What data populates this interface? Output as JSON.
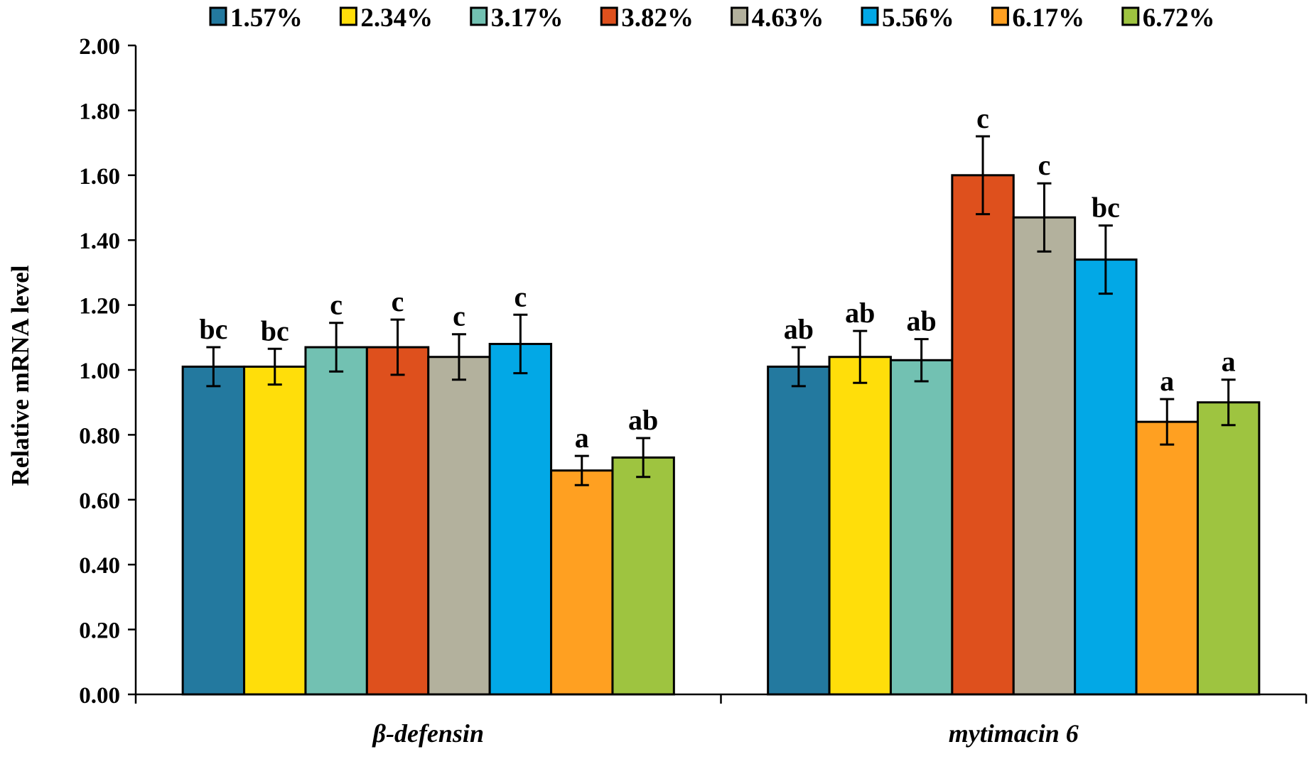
{
  "chart_data": {
    "type": "bar",
    "title": "",
    "xlabel": "",
    "ylabel": "Relative mRNA level",
    "ylim": [
      0,
      2.0
    ],
    "yticks": [
      "0.00",
      "0.20",
      "0.40",
      "0.60",
      "0.80",
      "1.00",
      "1.20",
      "1.40",
      "1.60",
      "1.80",
      "2.00"
    ],
    "grid": false,
    "legend_position": "top",
    "categories": [
      "β-defensin",
      "mytimacin 6"
    ],
    "series": [
      {
        "name": "1.57%",
        "color": "#23799f",
        "values": [
          1.01,
          1.01
        ],
        "errors": [
          0.06,
          0.06
        ],
        "labels": [
          "bc",
          "ab"
        ]
      },
      {
        "name": "2.34%",
        "color": "#ffde0a",
        "values": [
          1.01,
          1.04
        ],
        "errors": [
          0.055,
          0.08
        ],
        "labels": [
          "bc",
          "ab"
        ]
      },
      {
        "name": "3.17%",
        "color": "#72c1b2",
        "values": [
          1.07,
          1.03
        ],
        "errors": [
          0.075,
          0.065
        ],
        "labels": [
          "c",
          "ab"
        ]
      },
      {
        "name": "3.82%",
        "color": "#de501d",
        "values": [
          1.07,
          1.6
        ],
        "errors": [
          0.085,
          0.12
        ],
        "labels": [
          "c",
          "c"
        ]
      },
      {
        "name": "4.63%",
        "color": "#b3b19d",
        "values": [
          1.04,
          1.47
        ],
        "errors": [
          0.07,
          0.105
        ],
        "labels": [
          "c",
          "c"
        ]
      },
      {
        "name": "5.56%",
        "color": "#02a8e6",
        "values": [
          1.08,
          1.34
        ],
        "errors": [
          0.09,
          0.105
        ],
        "labels": [
          "c",
          "bc"
        ]
      },
      {
        "name": "6.17%",
        "color": "#ffa021",
        "values": [
          0.69,
          0.84
        ],
        "errors": [
          0.045,
          0.07
        ],
        "labels": [
          "a",
          "a"
        ]
      },
      {
        "name": "6.72%",
        "color": "#9ec440",
        "values": [
          0.73,
          0.9
        ],
        "errors": [
          0.06,
          0.07
        ],
        "labels": [
          "ab",
          "a"
        ]
      }
    ]
  }
}
